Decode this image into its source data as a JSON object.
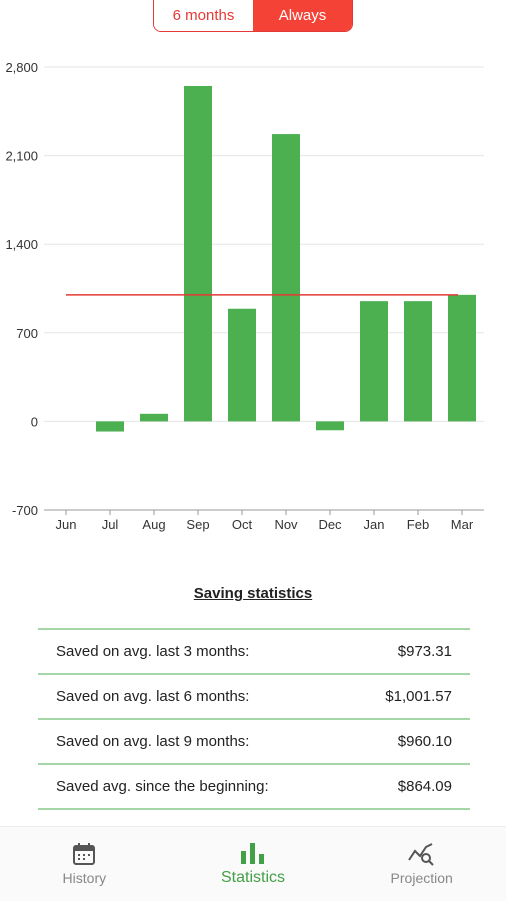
{
  "toggle": {
    "options": [
      {
        "label": "6 months",
        "selected": false
      },
      {
        "label": "Always",
        "selected": true
      }
    ]
  },
  "chart_data": {
    "type": "bar",
    "categories": [
      "Jun",
      "Jul",
      "Aug",
      "Sep",
      "Oct",
      "Nov",
      "Dec",
      "Jan",
      "Feb",
      "Mar"
    ],
    "values": [
      0,
      -80,
      60,
      2650,
      890,
      2270,
      -70,
      950,
      950,
      1000
    ],
    "reference_line": 1000,
    "yticks": [
      "2,800",
      "2,100",
      "1,400",
      "700",
      "0",
      "-700"
    ],
    "ytick_values": [
      2800,
      2100,
      1400,
      700,
      0,
      -700
    ],
    "ylim": [
      -700,
      2800
    ],
    "bar_color": "#4caf50",
    "reference_line_color": "#e53935",
    "grid": true
  },
  "stats": {
    "title": "Saving statistics",
    "rows": [
      {
        "label": "Saved on avg. last 3 months:",
        "value": "$973.31"
      },
      {
        "label": "Saved on avg. last 6 months:",
        "value": "$1,001.57"
      },
      {
        "label": "Saved on avg. last 9 months:",
        "value": "$960.10"
      },
      {
        "label": "Saved avg. since the beginning:",
        "value": "$864.09"
      }
    ]
  },
  "nav": {
    "items": [
      {
        "label": "History",
        "icon": "calendar-icon",
        "active": false
      },
      {
        "label": "Statistics",
        "icon": "bar-chart-icon",
        "active": true
      },
      {
        "label": "Projection",
        "icon": "trend-search-icon",
        "active": false
      }
    ]
  },
  "colors": {
    "accent": "#f44336",
    "active_nav": "#43a047",
    "divider": "#a5d6a7"
  }
}
